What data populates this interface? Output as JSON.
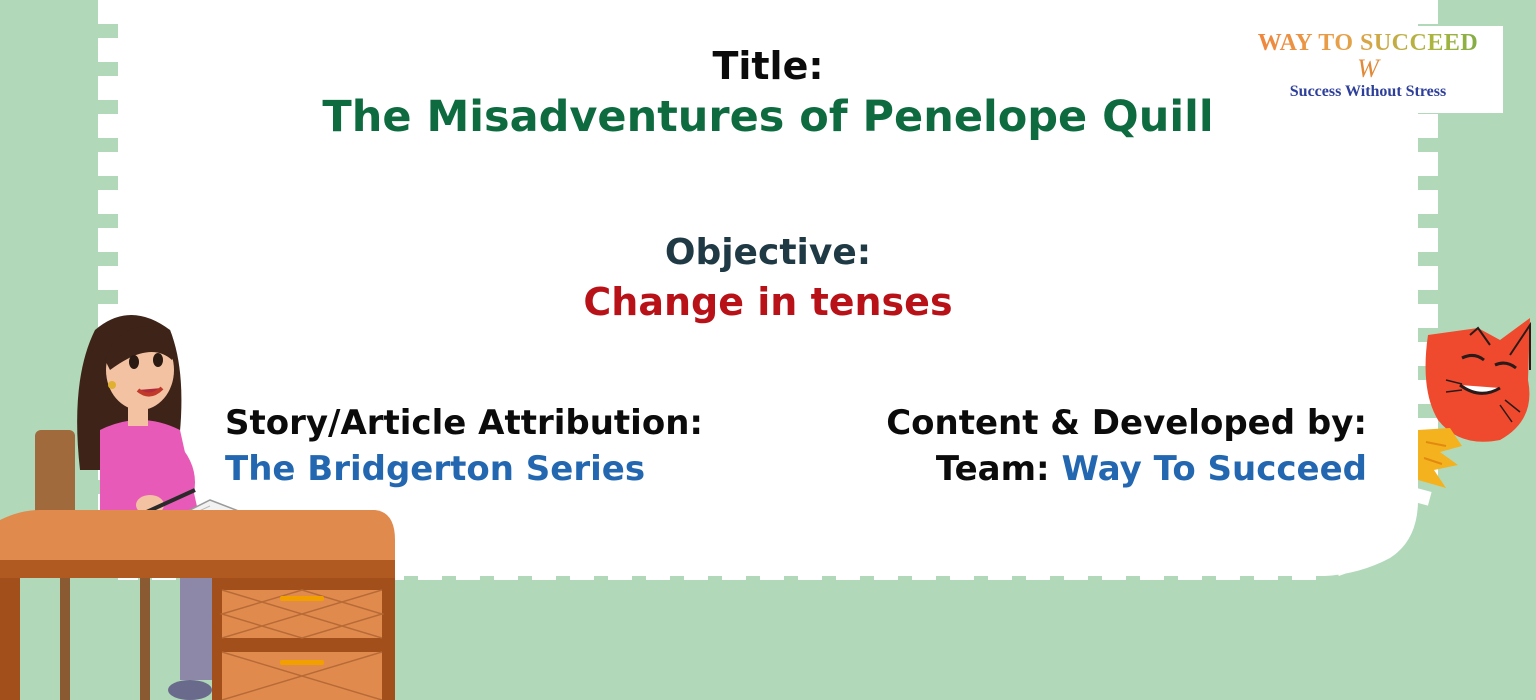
{
  "title": {
    "label": "Title:",
    "value": "The Misadventures of Penelope Quill"
  },
  "objective": {
    "label": "Objective:",
    "value": "Change in tenses"
  },
  "attribution": {
    "label": "Story/Article Attribution:",
    "value": "The Bridgerton Series"
  },
  "developer": {
    "label": "Content & Developed by:",
    "team_prefix": "Team:",
    "team_name": "Way To Succeed"
  },
  "logo": {
    "name": "WAY TO SUCCEED",
    "mark": "W",
    "tagline": "Success Without Stress"
  },
  "colors": {
    "background": "#b1d9b9",
    "card": "#ffffff",
    "title_green": "#0e6b3f",
    "objective_red": "#b81218",
    "accent_blue": "#2367b0"
  },
  "icons": [
    "girl-at-desk-illustration",
    "red-cat-illustration",
    "open-book-icon"
  ]
}
